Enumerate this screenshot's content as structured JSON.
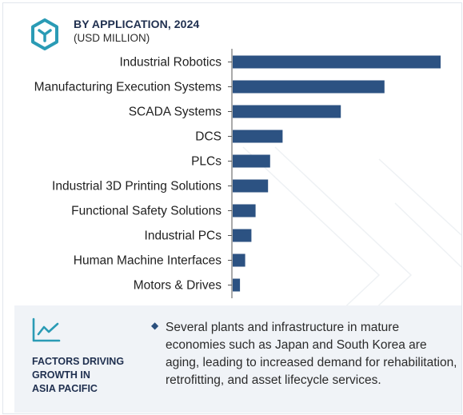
{
  "header": {
    "icon": "cube-icon",
    "title": "BY APPLICATION, 2024",
    "subtitle": "(USD MILLION)"
  },
  "chart_data": {
    "type": "bar",
    "orientation": "horizontal",
    "categories": [
      "Industrial Robotics",
      "Manufacturing Execution Systems",
      "SCADA Systems",
      "DCS",
      "PLCs",
      "Industrial 3D Printing Solutions",
      "Functional Safety Solutions",
      "Industrial PCs",
      "Human Machine Interfaces",
      "Motors & Drives"
    ],
    "values": [
      100,
      73,
      52,
      24,
      18,
      17,
      11,
      9,
      6,
      3.5
    ],
    "xlim": [
      0,
      100
    ],
    "grid": false,
    "bar_color": "#2c5282"
  },
  "factors": {
    "icon": "trend-line-icon",
    "title": "FACTORS DRIVING\nGROWTH IN\nASIA PACIFIC",
    "bullet_icon": "diamond-bullet-icon",
    "text": "Several plants and infrastructure in mature economies such as Japan and South Korea are aging, leading to increased demand for rehabilitation, retrofitting, and asset lifecycle services."
  },
  "colors": {
    "accent": "#2a9bb5",
    "bar": "#2c5282",
    "panel": "#f0f3f7",
    "heading": "#1f2f4f"
  }
}
